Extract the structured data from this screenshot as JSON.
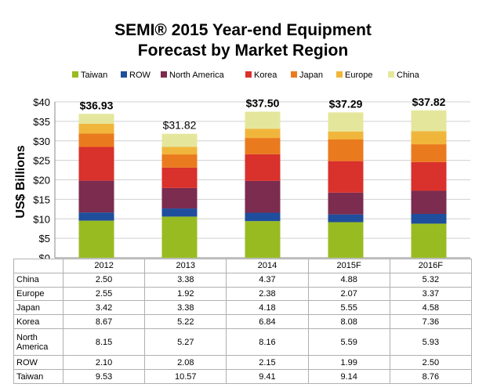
{
  "chart_data": {
    "type": "bar",
    "stacked": true,
    "title": [
      "SEMI® 2015 Year-end Equipment",
      "Forecast by Market Region"
    ],
    "ylabel": "US$ Billions",
    "ylim": [
      0,
      40
    ],
    "yticks": [
      "$0",
      "$5",
      "$10",
      "$15",
      "$20",
      "$25",
      "$30",
      "$35",
      "$40"
    ],
    "categories": [
      "2012",
      "2013",
      "2014",
      "2015F",
      "2016F"
    ],
    "totals": [
      "$36.93",
      "$31.82",
      "$37.50",
      "$37.29",
      "$37.82"
    ],
    "legend_position": "top",
    "grid": true,
    "series": [
      {
        "name": "Taiwan",
        "row_label": "Taiwan",
        "color": "#99bb22",
        "values": [
          9.53,
          10.57,
          9.41,
          9.14,
          8.76
        ],
        "labels": [
          "9.53",
          "10.57",
          "9.41",
          "9.14",
          "8.76"
        ]
      },
      {
        "name": "ROW",
        "row_label": "ROW",
        "color": "#1f4e9c",
        "values": [
          2.1,
          2.08,
          2.15,
          1.99,
          2.5
        ],
        "labels": [
          "2.10",
          "2.08",
          "2.15",
          "1.99",
          "2.50"
        ]
      },
      {
        "name": "North America",
        "row_label": "North America",
        "color": "#7b2c4f",
        "values": [
          8.15,
          5.27,
          8.16,
          5.59,
          5.93
        ],
        "labels": [
          "8.15",
          "5.27",
          "8.16",
          "5.59",
          "5.93"
        ]
      },
      {
        "name": "Korea",
        "row_label": "Korea",
        "color": "#d9312c",
        "values": [
          8.67,
          5.22,
          6.84,
          8.08,
          7.36
        ],
        "labels": [
          "8.67",
          "5.22",
          "6.84",
          "8.08",
          "7.36"
        ]
      },
      {
        "name": "Japan",
        "row_label": "Japan",
        "color": "#ea7a1e",
        "values": [
          3.42,
          3.38,
          4.18,
          5.55,
          4.58
        ],
        "labels": [
          "3.42",
          "3.38",
          "4.18",
          "5.55",
          "4.58"
        ]
      },
      {
        "name": "Europe",
        "row_label": "Europe",
        "color": "#f0b63c",
        "values": [
          2.55,
          1.92,
          2.38,
          2.07,
          3.37
        ],
        "labels": [
          "2.55",
          "1.92",
          "2.38",
          "2.07",
          "3.37"
        ]
      },
      {
        "name": "China",
        "row_label": "China",
        "color": "#e4e79b",
        "values": [
          2.5,
          3.38,
          4.37,
          4.88,
          5.32
        ],
        "labels": [
          "2.50",
          "3.38",
          "4.37",
          "4.88",
          "5.32"
        ]
      }
    ]
  }
}
